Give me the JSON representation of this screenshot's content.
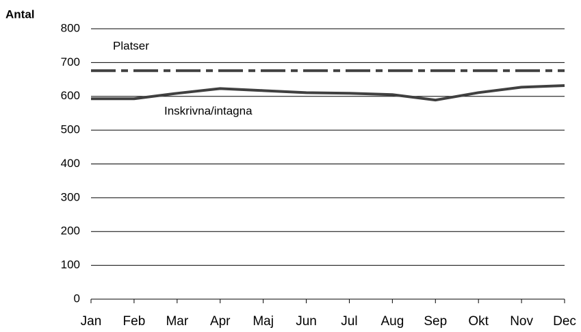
{
  "chart_data": {
    "type": "line",
    "y_label": "Antal",
    "categories": [
      "Jan",
      "Feb",
      "Mar",
      "Apr",
      "Maj",
      "Jun",
      "Jul",
      "Aug",
      "Sep",
      "Okt",
      "Nov",
      "Dec"
    ],
    "series": [
      {
        "name": "Platser",
        "color": "#404040",
        "dashed": true,
        "values": [
          676,
          676,
          676,
          676,
          676,
          676,
          676,
          676,
          676,
          676,
          676,
          676
        ]
      },
      {
        "name": "Inskrivna/intagna",
        "color": "#404040",
        "dashed": false,
        "values": [
          593,
          593,
          609,
          623,
          617,
          611,
          609,
          605,
          589,
          611,
          627,
          632
        ]
      }
    ],
    "ylim": [
      0,
      800
    ],
    "yticks": [
      0,
      100,
      200,
      300,
      400,
      500,
      600,
      700,
      800
    ],
    "grid": true
  }
}
